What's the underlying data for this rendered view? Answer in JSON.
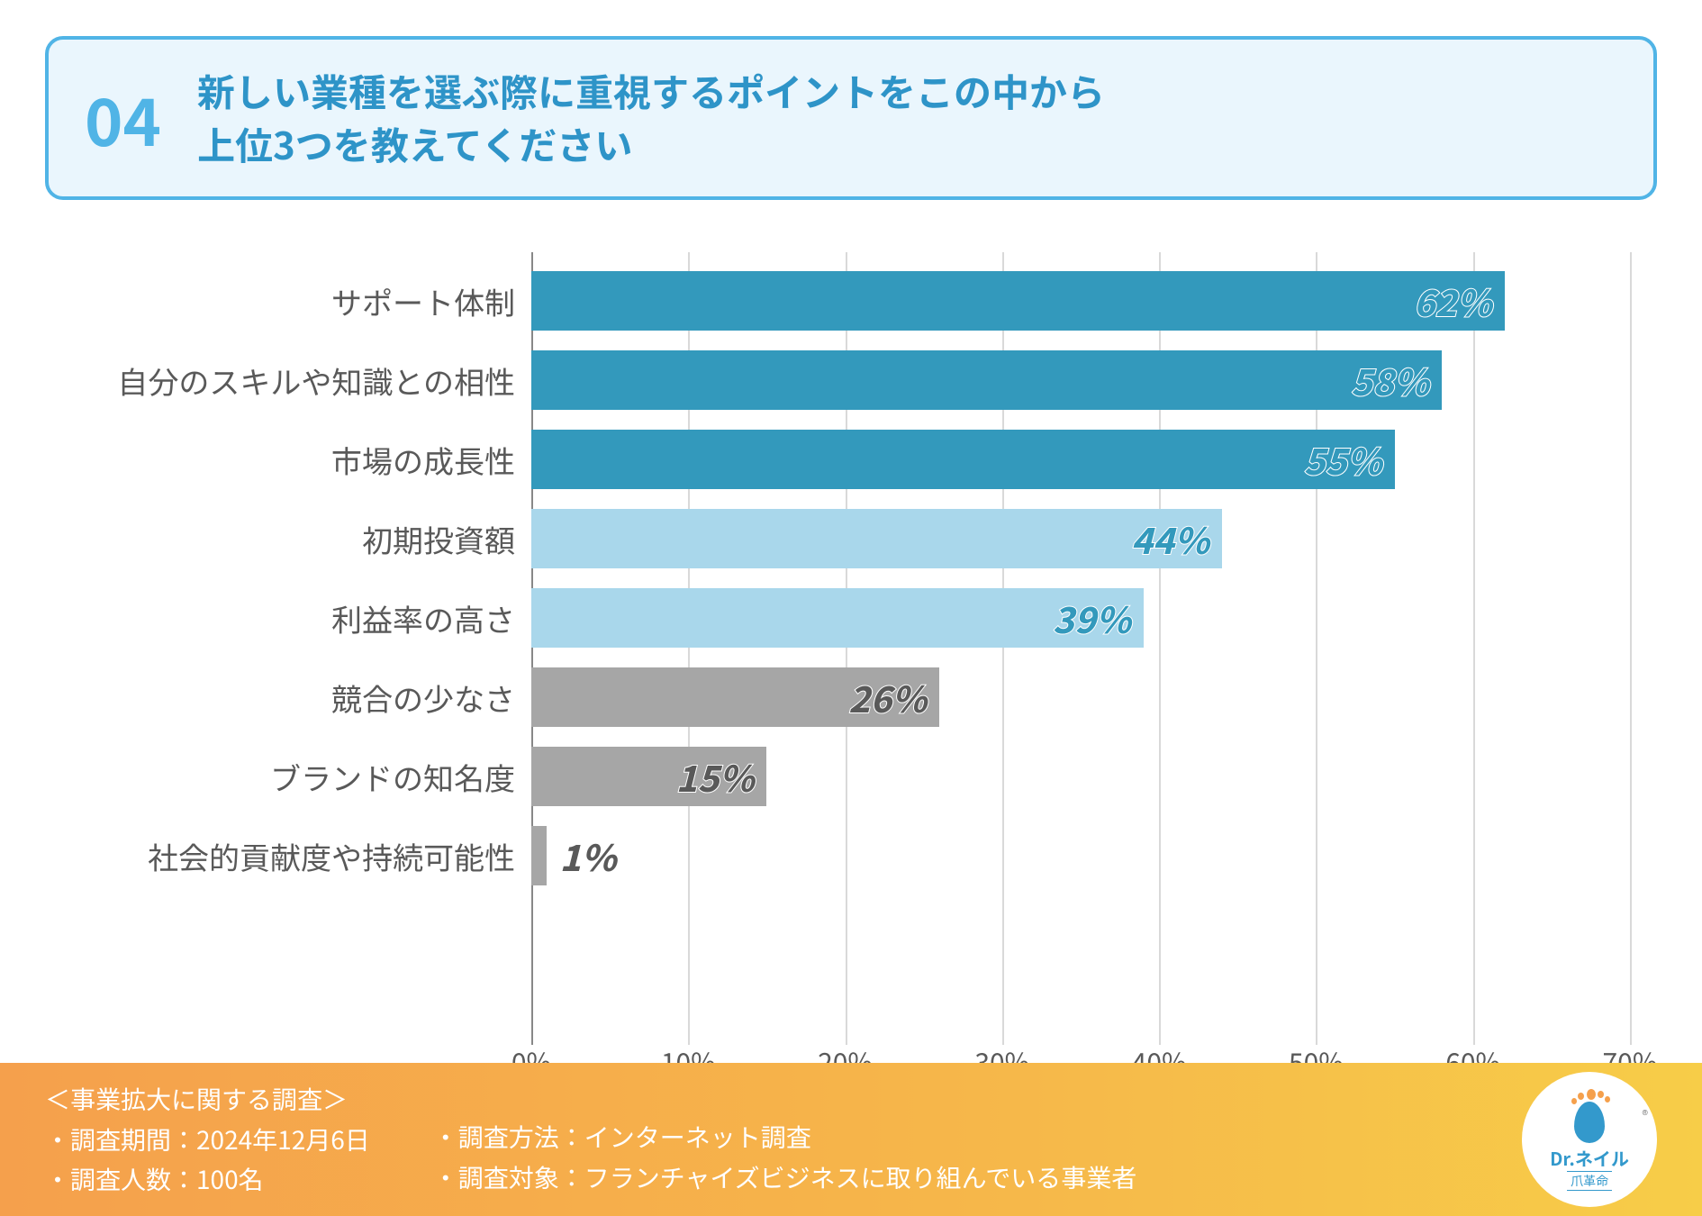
{
  "header": {
    "number": "04",
    "question": "新しい業種を選ぶ際に重視するポイントをこの中から\n上位3つを教えてください",
    "border_color": "#50b4e6",
    "bg_color": "#eaf6fd",
    "number_color": "#50b4e6",
    "text_color": "#2e94c8"
  },
  "chart": {
    "type": "bar-horizontal",
    "xmax": 70,
    "xtick_step": 10,
    "xtick_suffix": "%",
    "axis_label_color": "#595959",
    "grid_color": "#d9d9d9",
    "bars": [
      {
        "label": "サポート体制",
        "value": 62,
        "color": "#3399bc",
        "value_text_color": "#3399bc",
        "outside": false
      },
      {
        "label": "自分のスキルや知識との相性",
        "value": 58,
        "color": "#3399bc",
        "value_text_color": "#3399bc",
        "outside": false
      },
      {
        "label": "市場の成長性",
        "value": 55,
        "color": "#3399bc",
        "value_text_color": "#3399bc",
        "outside": false
      },
      {
        "label": "初期投資額",
        "value": 44,
        "color": "#a9d7eb",
        "value_text_color": "#3399bc",
        "outside": false
      },
      {
        "label": "利益率の高さ",
        "value": 39,
        "color": "#a9d7eb",
        "value_text_color": "#3399bc",
        "outside": false
      },
      {
        "label": "競合の少なさ",
        "value": 26,
        "color": "#a6a6a6",
        "value_text_color": "#595959",
        "outside": false
      },
      {
        "label": "ブランドの知名度",
        "value": 15,
        "color": "#a6a6a6",
        "value_text_color": "#595959",
        "outside": false
      },
      {
        "label": "社会的貢献度や持続可能性",
        "value": 1,
        "color": "#a6a6a6",
        "value_text_color": "#595959",
        "outside": true
      }
    ]
  },
  "footer": {
    "title": "＜事業拡大に関する調査＞",
    "col1": [
      "・調査期間：2024年12月6日",
      "・調査人数：100名"
    ],
    "col2": [
      "・調査方法：インターネット調査",
      "・調査対象：フランチャイズビジネスに取り組んでいる事業者"
    ],
    "gradient_from": "#f5a04c",
    "gradient_to": "#f7cd48",
    "logo": {
      "brand_prefix": "Dr.",
      "brand": "ネイル",
      "sub": "爪革命",
      "reg": "®"
    }
  }
}
